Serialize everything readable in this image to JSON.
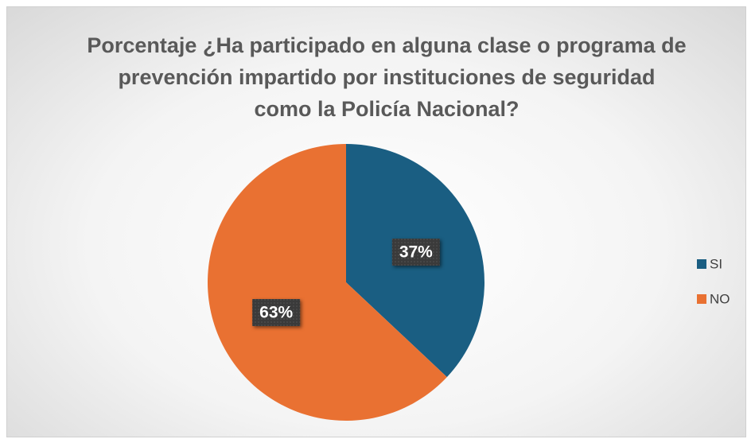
{
  "chart_data": {
    "type": "pie",
    "title": "Porcentaje ¿Ha participado en alguna clase o programa de prevención impartido por instituciones de seguridad como la Policía Nacional?",
    "categories": [
      "SI",
      "NO"
    ],
    "values": [
      37,
      63
    ],
    "value_labels": [
      "37%",
      "63%"
    ],
    "colors": [
      "#1a5e82",
      "#e97132"
    ],
    "legend": "right"
  }
}
